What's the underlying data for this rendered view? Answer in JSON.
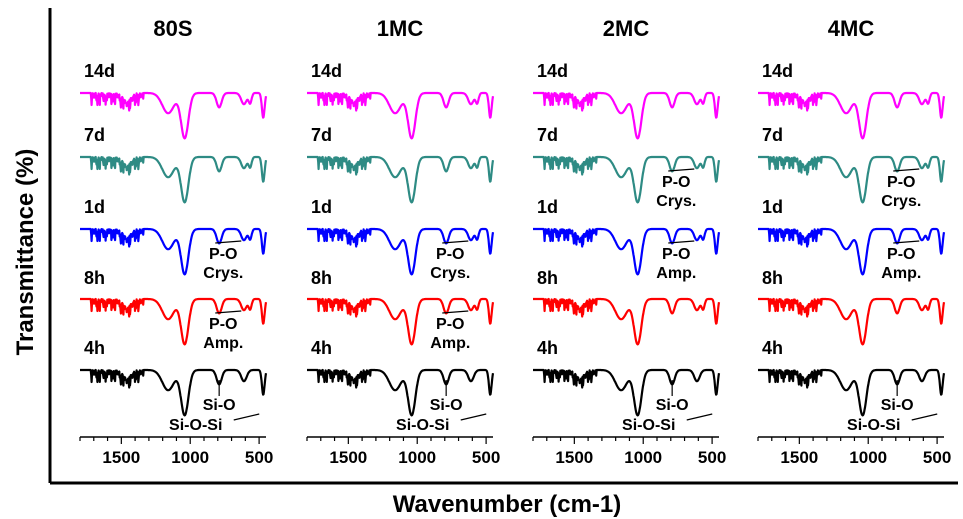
{
  "figure": {
    "ylabel": "Transmittance (%)",
    "xlabel": "Wavenumber (cm-1)"
  },
  "chart_data": {
    "type": "line",
    "x_direction": "reversed",
    "xlim": [
      1800,
      450
    ],
    "xticks": [
      1500,
      1000,
      500
    ],
    "y_ticks_shown": false,
    "stack_order": [
      "4h",
      "8h",
      "1d",
      "7d",
      "14d"
    ],
    "series_colors": {
      "14d": "#ff00ff",
      "7d": "#2e8b84",
      "1d": "#0000ff",
      "8h": "#ff0000",
      "4h": "#000000"
    },
    "panels": [
      {
        "title": "80S",
        "series": [
          "14d",
          "7d",
          "1d",
          "8h",
          "4h"
        ],
        "annotations": [
          {
            "series": "1d",
            "lines": [
              "P-O",
              "Crys."
            ]
          },
          {
            "series": "8h",
            "lines": [
              "P-O",
              "Amp."
            ]
          },
          {
            "series": "4h",
            "lines": [
              "Si-O"
            ]
          },
          {
            "series": "4h",
            "lines": [
              "Si-O-Si"
            ]
          }
        ]
      },
      {
        "title": "1MC",
        "series": [
          "14d",
          "7d",
          "1d",
          "8h",
          "4h"
        ],
        "annotations": [
          {
            "series": "1d",
            "lines": [
              "P-O",
              "Crys."
            ]
          },
          {
            "series": "8h",
            "lines": [
              "P-O",
              "Amp."
            ]
          },
          {
            "series": "4h",
            "lines": [
              "Si-O"
            ]
          },
          {
            "series": "4h",
            "lines": [
              "Si-O-Si"
            ]
          }
        ]
      },
      {
        "title": "2MC",
        "series": [
          "14d",
          "7d",
          "1d",
          "8h",
          "4h"
        ],
        "annotations": [
          {
            "series": "7d",
            "lines": [
              "P-O",
              "Crys."
            ]
          },
          {
            "series": "1d",
            "lines": [
              "P-O",
              "Amp."
            ]
          },
          {
            "series": "4h",
            "lines": [
              "Si-O"
            ]
          },
          {
            "series": "4h",
            "lines": [
              "Si-O-Si"
            ]
          }
        ]
      },
      {
        "title": "4MC",
        "series": [
          "14d",
          "7d",
          "1d",
          "8h",
          "4h"
        ],
        "annotations": [
          {
            "series": "7d",
            "lines": [
              "P-O",
              "Crys."
            ]
          },
          {
            "series": "1d",
            "lines": [
              "P-O",
              "Amp."
            ]
          },
          {
            "series": "4h",
            "lines": [
              "Si-O"
            ]
          },
          {
            "series": "4h",
            "lines": [
              "Si-O-Si"
            ]
          }
        ]
      }
    ]
  }
}
